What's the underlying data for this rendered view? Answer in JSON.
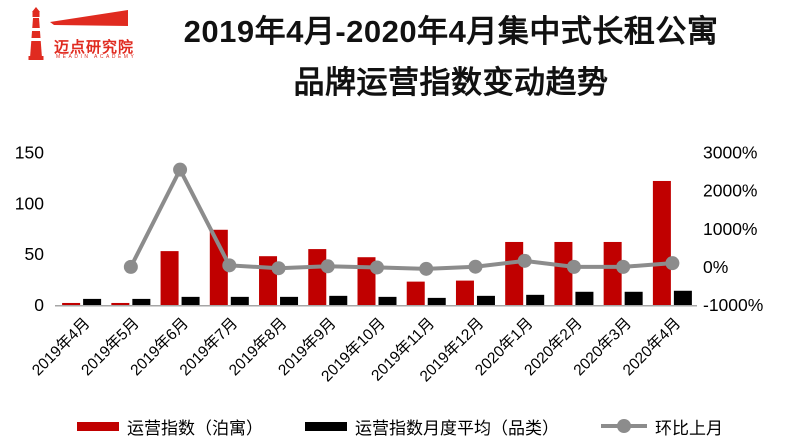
{
  "logo": {
    "name": "迈点研究院",
    "subtext": "MEADIN ACADEMY"
  },
  "title": {
    "line1": "2019年4月-2020年4月集中式长租公寓",
    "line2": "品牌运营指数变动趋势"
  },
  "colors": {
    "bar_primary": "#C00000",
    "bar_secondary": "#000000",
    "trend_line": "#8C8C8C",
    "axis_line": "#A6A6A6",
    "logo_red": "#E02B20",
    "title_text": "#111111"
  },
  "chart_data": {
    "type": "bar",
    "title": "2019年4月-2020年4月集中式长租公寓品牌运营指数变动趋势",
    "categories": [
      "2019年4月",
      "2019年5月",
      "2019年6月",
      "2019年7月",
      "2019年8月",
      "2019年9月",
      "2019年10月",
      "2019年11月",
      "2019年12月",
      "2020年1月",
      "2020年2月",
      "2020年3月",
      "2020年4月"
    ],
    "series": [
      {
        "name": "运营指数（泊寓）",
        "type": "bar",
        "axis": "left",
        "color": "#C00000",
        "values": [
          2,
          2,
          53,
          74,
          48,
          55,
          47,
          23,
          24,
          62,
          62,
          62,
          122
        ]
      },
      {
        "name": "运营指数月度平均（品类）",
        "type": "bar",
        "axis": "left",
        "color": "#000000",
        "values": [
          6,
          6,
          8,
          8,
          8,
          9,
          8,
          7,
          9,
          10,
          13,
          13,
          14
        ]
      },
      {
        "name": "环比上月",
        "type": "line",
        "axis": "right",
        "color": "#8C8C8C",
        "values": [
          null,
          0,
          2550,
          40,
          -35,
          15,
          -15,
          -51,
          4,
          158,
          0,
          0,
          97
        ]
      }
    ],
    "left_axis": {
      "ticks": [
        0,
        50,
        100,
        150
      ],
      "range": [
        0,
        150
      ]
    },
    "right_axis": {
      "tick_labels": [
        "-1000%",
        "0%",
        "1000%",
        "2000%",
        "3000%"
      ],
      "tick_values": [
        -1000,
        0,
        1000,
        2000,
        3000
      ],
      "range": [
        -1000,
        3000
      ]
    },
    "grid": false,
    "legend_position": "bottom",
    "xlabel": "",
    "ylabel": ""
  }
}
